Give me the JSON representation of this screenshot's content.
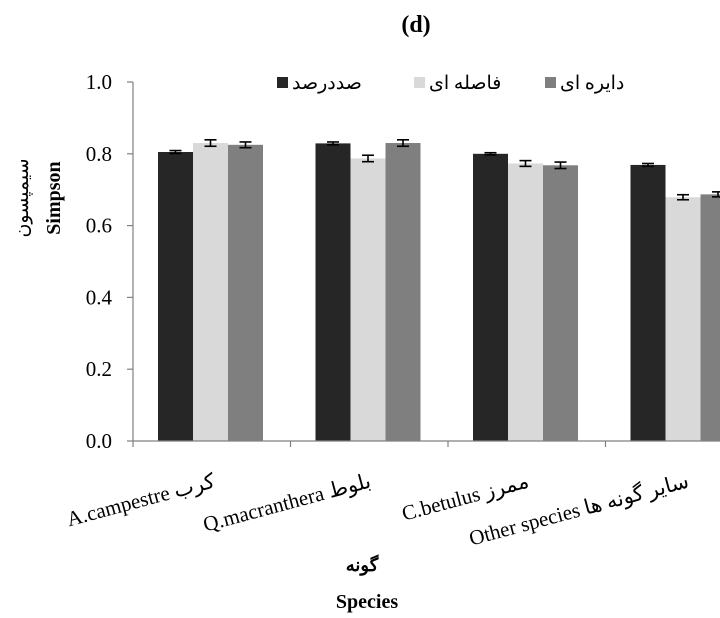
{
  "chart_data": {
    "type": "bar",
    "title": "(d)",
    "ylabel": "Simpson",
    "ylabel_fa": "سیمپسون",
    "xlabel": "Species",
    "xlabel_fa": "گونه",
    "ylim": [
      0,
      1.0
    ],
    "yticks": [
      "0.0",
      "0.2",
      "0.4",
      "0.6",
      "0.8",
      "1.0"
    ],
    "categories": [
      "A.campestre کرب",
      "Q.macranthera بلوط",
      "C.betulus ممرز",
      "Other species سایر گونه ها"
    ],
    "series": [
      {
        "name": "صددرصد",
        "color": "#262626",
        "values": [
          0.805,
          0.829,
          0.8,
          0.769
        ],
        "errors": [
          0.004,
          0.004,
          0.003,
          0.004
        ]
      },
      {
        "name": "فاصله ای",
        "color": "#d9d9d9",
        "values": [
          0.83,
          0.787,
          0.773,
          0.679
        ],
        "errors": [
          0.009,
          0.009,
          0.008,
          0.007
        ]
      },
      {
        "name": "دایره ای",
        "color": "#7f7f7f",
        "values": [
          0.825,
          0.83,
          0.768,
          0.687
        ],
        "errors": [
          0.008,
          0.009,
          0.009,
          0.007
        ]
      }
    ],
    "legend_position": "top",
    "grid": false
  }
}
